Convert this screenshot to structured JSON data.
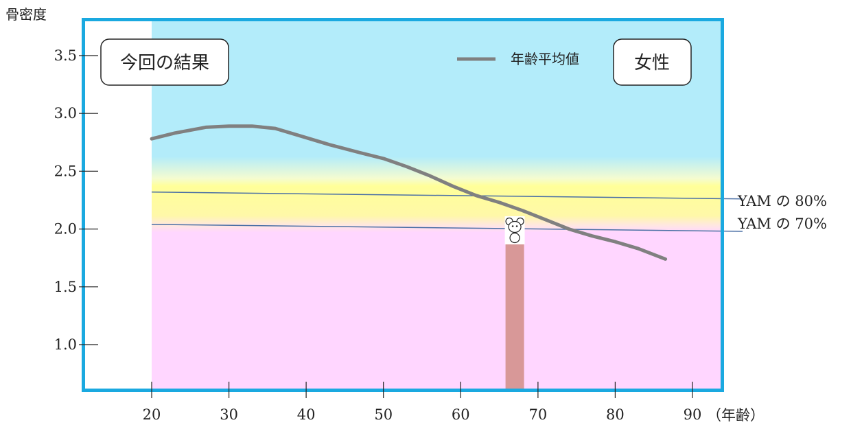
{
  "chart_data": {
    "type": "line",
    "ylabel": "骨密度",
    "xlabel": "（年齢）",
    "x_ticks": [
      "20",
      "30",
      "40",
      "50",
      "60",
      "70",
      "80",
      "90"
    ],
    "y_ticks": [
      "1.0",
      "1.5",
      "2.0",
      "2.5",
      "3.0",
      "3.5"
    ],
    "xlim": [
      11,
      93.5
    ],
    "ylim": [
      0.8,
      4.0
    ],
    "title_box": "今回の結果",
    "gender_box": "女性",
    "legend": {
      "position": "top-right",
      "entries": [
        {
          "label": "年齢平均値",
          "color": "#808080"
        }
      ]
    },
    "series": [
      {
        "name": "年齢平均値",
        "color": "#808080",
        "x": [
          20,
          23,
          27,
          30,
          33,
          36,
          39,
          43,
          47,
          50,
          53,
          56,
          59,
          62,
          65,
          68,
          71,
          74,
          77,
          80,
          83,
          86.5
        ],
        "y": [
          2.78,
          2.83,
          2.88,
          2.89,
          2.89,
          2.87,
          2.81,
          2.73,
          2.66,
          2.61,
          2.54,
          2.46,
          2.37,
          2.29,
          2.23,
          2.16,
          2.08,
          2.0,
          1.94,
          1.89,
          1.83,
          1.74
        ]
      }
    ],
    "reference_lines": [
      {
        "label": "YAM の 80%",
        "y_start": 2.32,
        "y_end": 2.26,
        "color": "#4a6fa5"
      },
      {
        "label": "YAM の 70%",
        "y_start": 2.04,
        "y_end": 1.98,
        "color": "#4a6fa5"
      }
    ],
    "zones": [
      {
        "name": "normal",
        "y_from": 2.38,
        "y_to": 4.0,
        "color": "#b3ecfa"
      },
      {
        "name": "caution",
        "y_from": 2.05,
        "y_to": 2.38,
        "color": "#ffff99"
      },
      {
        "name": "risk",
        "y_from": 0.8,
        "y_to": 1.97,
        "color": "#ffd6ff"
      }
    ],
    "result": {
      "age": 67,
      "value": 1.87,
      "bar_width_years": 2.4,
      "color": "#d89898"
    },
    "frame_color": "#1aa9e0"
  }
}
